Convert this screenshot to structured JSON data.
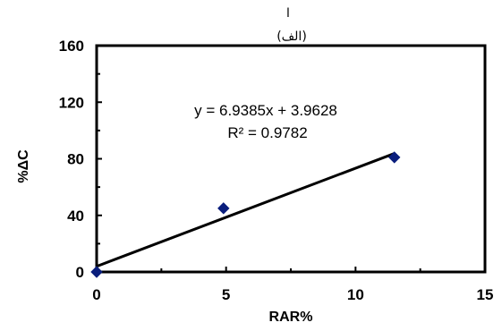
{
  "chart_data": {
    "type": "scatter",
    "panel_label": "(الف)",
    "top_mark": "ا",
    "xlabel": "RAR%",
    "ylabel": "%ΔC",
    "xlim": [
      0,
      15
    ],
    "ylim": [
      0,
      160
    ],
    "x_ticks": [
      0,
      5,
      10,
      15
    ],
    "y_ticks": [
      0,
      40,
      80,
      120,
      160
    ],
    "x_tick_labels": [
      "0",
      "5",
      "10",
      "15"
    ],
    "y_tick_labels": [
      "0",
      "40",
      "80",
      "120",
      "160"
    ],
    "points": [
      {
        "x": 0,
        "y": 0
      },
      {
        "x": 4.9,
        "y": 45
      },
      {
        "x": 11.5,
        "y": 81
      }
    ],
    "trendline": {
      "slope": 6.9385,
      "intercept": 3.9628,
      "x_range": [
        0,
        11.5
      ]
    },
    "equation_text": "y = 6.9385x + 3.9628",
    "r2_text": "R² = 0.9782",
    "marker_color": "#0a1e7d",
    "line_color": "#000000",
    "grid": false
  }
}
